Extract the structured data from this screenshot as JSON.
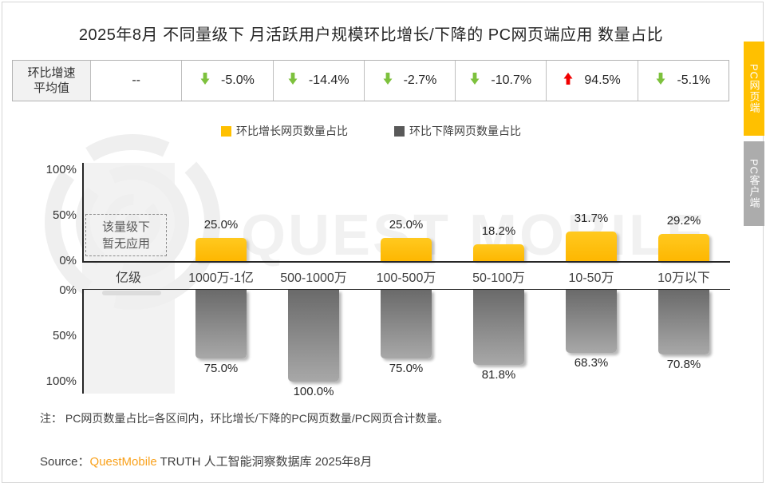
{
  "page": {
    "title": "2025年8月 不同量级下 月活跃用户规模环比增长/下降的 PC网页端应用 数量占比",
    "note": "注： PC网页数量占比=各区间内，环比增长/下降的PC网页数量/PC网页合计数量。",
    "source": {
      "prefix": "Source：",
      "brand": "QuestMobile",
      "suffix": " TRUTH 人工智能洞察数据库 2025年8月"
    },
    "watermark": "QUEST MOBILE"
  },
  "summary_table": {
    "row_header_line1": "环比增速",
    "row_header_line2": "平均值",
    "cells": [
      {
        "arrow": "",
        "value": "--"
      },
      {
        "arrow": "down",
        "value": "-5.0%"
      },
      {
        "arrow": "down",
        "value": "-14.4%"
      },
      {
        "arrow": "down",
        "value": "-2.7%"
      },
      {
        "arrow": "down",
        "value": "-10.7%"
      },
      {
        "arrow": "up",
        "value": "94.5%"
      },
      {
        "arrow": "down",
        "value": "-5.1%"
      }
    ],
    "arrow_colors": {
      "down": "#7dc13d",
      "up": "#f10000"
    }
  },
  "legend": {
    "items": [
      {
        "label": "环比增长网页数量占比",
        "color": "#ffc000"
      },
      {
        "label": "环比下降网页数量占比",
        "color": "#595959"
      }
    ]
  },
  "chart_data": {
    "type": "bar",
    "categories": [
      "亿级",
      "1000万-1亿",
      "500-1000万",
      "100-500万",
      "50-100万",
      "10-50万",
      "10万以下"
    ],
    "series": [
      {
        "name": "环比增长网页数量占比",
        "direction": "up",
        "color_top": "#ffc91f",
        "color_bottom": "#feb701",
        "values": [
          null,
          25.0,
          0,
          25.0,
          18.2,
          31.7,
          29.2
        ]
      },
      {
        "name": "环比下降网页数量占比",
        "direction": "down",
        "color_top": "#6a6a6a",
        "color_bottom": "#a8a8a8",
        "values": [
          null,
          75.0,
          100.0,
          75.0,
          81.8,
          68.3,
          70.8
        ]
      }
    ],
    "top_axis_ticks": [
      "100%",
      "50%",
      "0%"
    ],
    "bottom_axis_ticks": [
      "0%",
      "50%",
      "100%"
    ],
    "ylim": [
      0,
      100
    ],
    "no_data_label": "该量级下\n暂无应用",
    "no_data_category": "亿级"
  },
  "side_tabs": {
    "items": [
      {
        "label": "PC网页端",
        "active": true
      },
      {
        "label": "PC客户端",
        "active": false
      }
    ],
    "active_color": "#ffc000",
    "inactive_color": "#acacac"
  }
}
